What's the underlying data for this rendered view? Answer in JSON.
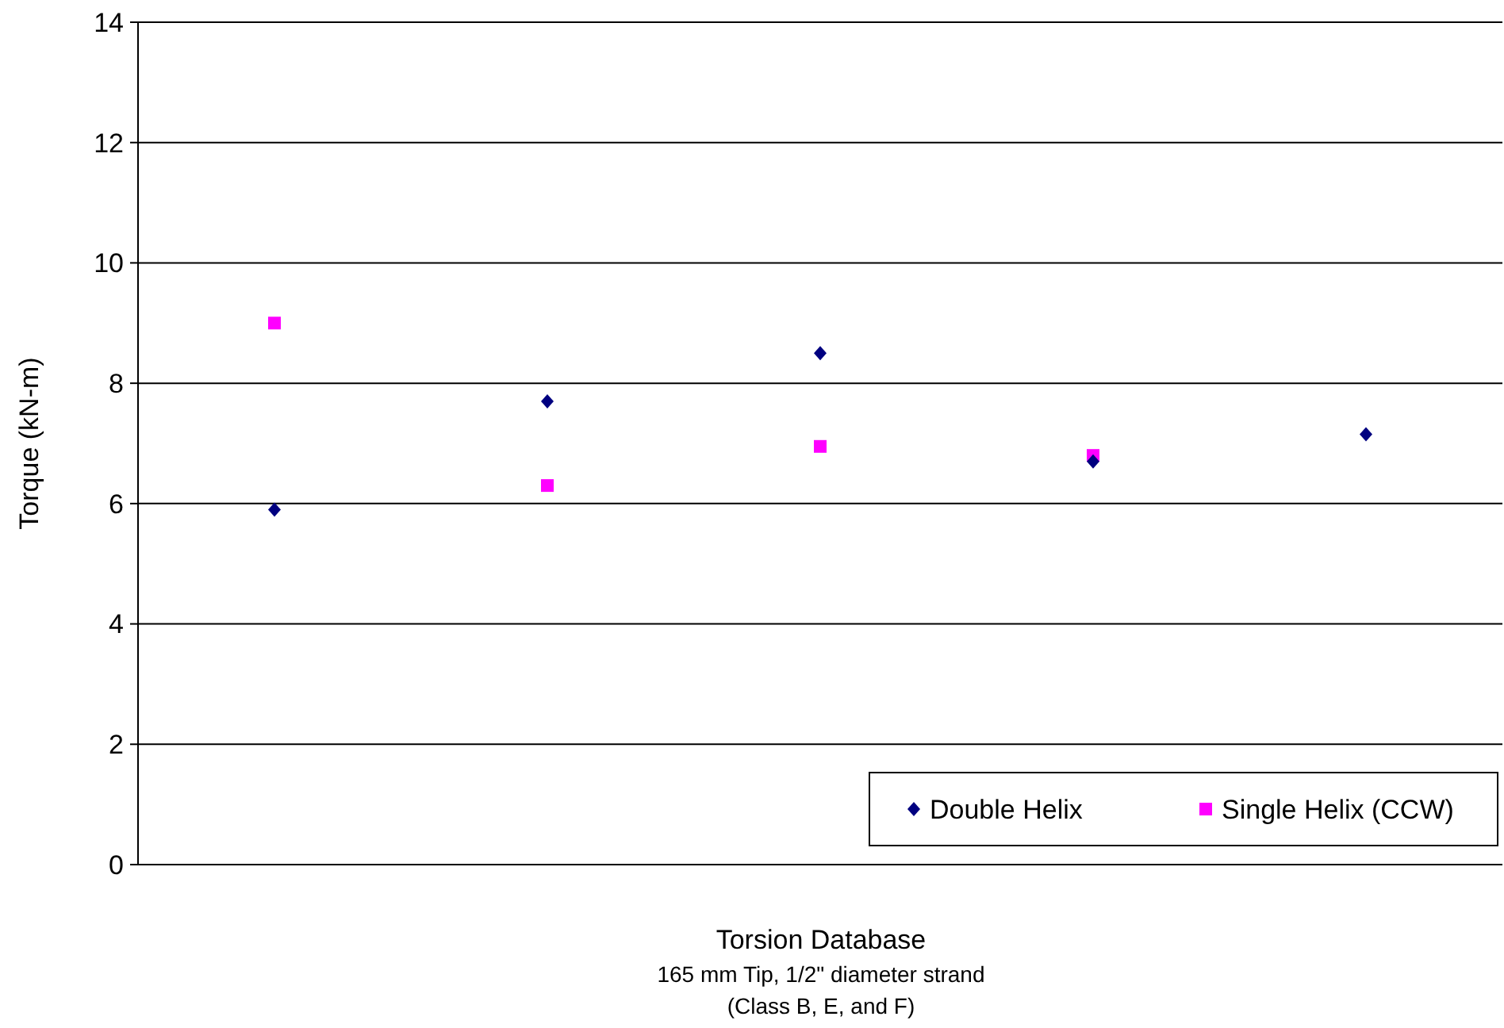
{
  "chart_data": {
    "type": "scatter",
    "xlabel": "Torsion Database",
    "ylabel": "Torque (kN-m)",
    "annotations": [
      "165 mm Tip, 1/2\" diameter strand",
      "(Class B, E, and F)"
    ],
    "categories": [
      null,
      null,
      null,
      null,
      null
    ],
    "ylim": [
      0,
      14
    ],
    "yticks": [
      0,
      2,
      4,
      6,
      8,
      10,
      12,
      14
    ],
    "grid": "y",
    "legend": "bottom right",
    "series": [
      {
        "name": "Double Helix",
        "color": "#000080",
        "marker": "diamond",
        "values": [
          5.9,
          7.7,
          8.5,
          6.7,
          7.15
        ]
      },
      {
        "name": "Single Helix (CCW)",
        "color": "#ff00ff",
        "marker": "square",
        "values": [
          9.0,
          6.3,
          6.95,
          6.8,
          null
        ]
      }
    ]
  }
}
